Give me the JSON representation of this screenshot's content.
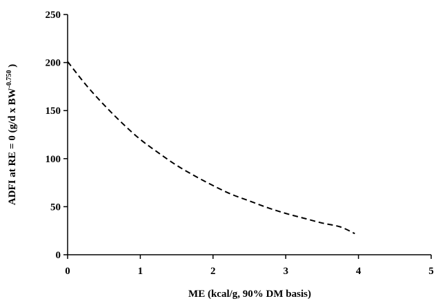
{
  "chart_data": {
    "type": "line",
    "title": "",
    "xlabel": "ME (kcal/g, 90% DM basis)",
    "ylabel": {
      "main": "ADFI at RE = 0 (g/d x BW",
      "exponent": "-0.750",
      "close": " )"
    },
    "xlim": [
      0,
      5
    ],
    "ylim": [
      0,
      250
    ],
    "x_ticks": [
      "0",
      "1",
      "2",
      "3",
      "4",
      "5"
    ],
    "y_ticks": [
      "0",
      "50",
      "100",
      "150",
      "200",
      "250"
    ],
    "grid": false,
    "legend": "none",
    "series": [
      {
        "line_style": "dashed",
        "color": "#000000",
        "x": [
          0,
          0.25,
          0.5,
          0.75,
          1.0,
          1.25,
          1.5,
          1.75,
          2.0,
          2.25,
          2.5,
          2.75,
          3.0,
          3.25,
          3.5,
          3.75,
          3.95
        ],
        "y": [
          201,
          177,
          156,
          137,
          120,
          106,
          93,
          82,
          72,
          63,
          56,
          49,
          43,
          38,
          33,
          29,
          22
        ]
      }
    ]
  }
}
